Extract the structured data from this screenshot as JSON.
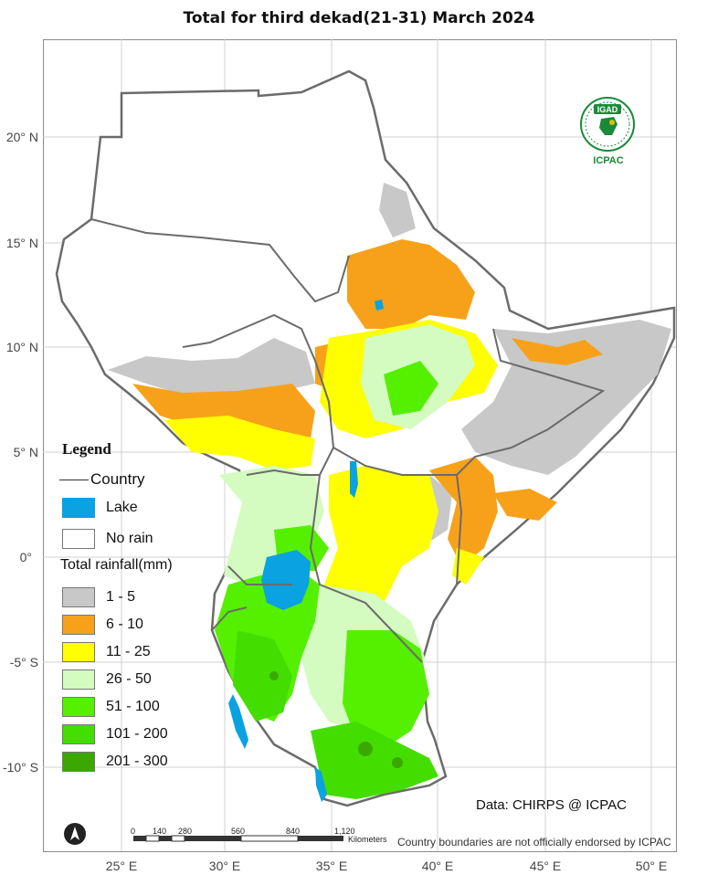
{
  "title": "Total  for  third dekad(21-31) March 2024",
  "lat_labels": [
    "20° N",
    "15° N",
    "10° N",
    "5° N",
    "0°",
    "-5° S",
    "-10° S"
  ],
  "lon_labels": [
    "25° E",
    "30° E",
    "35° E",
    "40° E",
    "45° E",
    "50° E"
  ],
  "legend": {
    "heading": "Legend",
    "country": "Country",
    "lake": "Lake",
    "no_rain": "No rain",
    "total_heading": "Total rainfall(mm)",
    "classes": [
      {
        "label": "1 - 5",
        "color": "#c8c8c8"
      },
      {
        "label": "6 - 10",
        "color": "#f7a11a"
      },
      {
        "label": "11 - 25",
        "color": "#ffff00"
      },
      {
        "label": "26 - 50",
        "color": "#d4fbc0"
      },
      {
        "label": "51 - 100",
        "color": "#55ef00"
      },
      {
        "label": "101 - 200",
        "color": "#44dd00"
      },
      {
        "label": "201 - 300",
        "color": "#3aa800"
      }
    ],
    "lake_color": "#0aa2e0",
    "border_color": "#6b6b6b"
  },
  "scale_bar": {
    "ticks": [
      "0",
      "140",
      "280",
      "560",
      "840",
      "1,120"
    ],
    "unit": "Kilometers"
  },
  "logo": {
    "top": "IGAD",
    "bottom": "ICPAC"
  },
  "source": "Data: CHIRPS @ ICPAC",
  "disclaimer": "Country boundaries are not officially endorsed by ICPAC"
}
